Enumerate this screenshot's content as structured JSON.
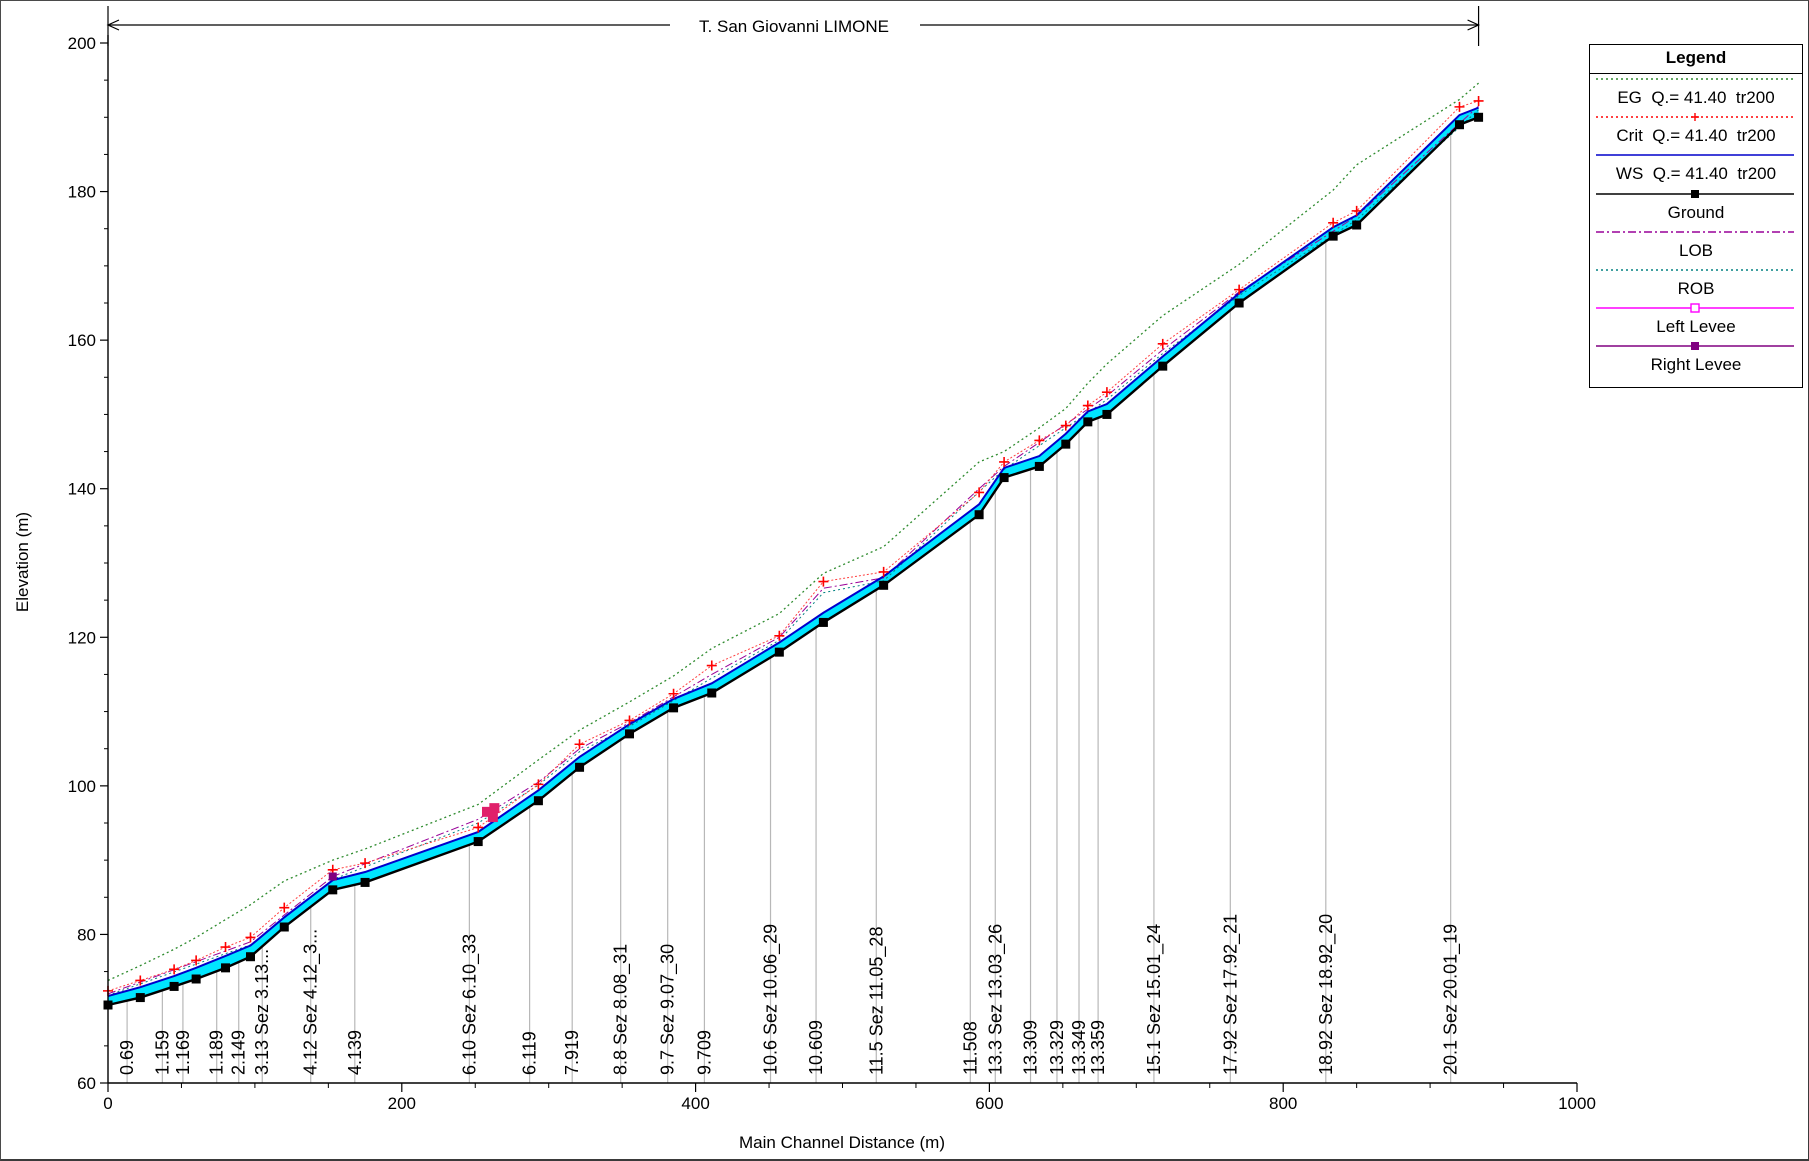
{
  "chart_data": {
    "type": "line",
    "title": "T. San Giovanni LIMONE",
    "xlabel": "Main Channel Distance (m)",
    "ylabel": "Elevation (m)",
    "xlim": [
      0,
      1000
    ],
    "ylim": [
      60,
      200
    ],
    "x_ticks": [
      "0",
      "200",
      "400",
      "600",
      "800",
      "1000"
    ],
    "y_ticks": [
      "60",
      "80",
      "100",
      "120",
      "140",
      "160",
      "180",
      "200"
    ],
    "legend_position": "top-right",
    "legend": {
      "title": "Legend",
      "items": [
        {
          "label": "EG  Q.= 41.40  tr200",
          "color": "#2e8b2e",
          "style": "dotted",
          "marker": ""
        },
        {
          "label": "Crit  Q.= 41.40  tr200",
          "color": "#ff0000",
          "style": "dotted",
          "marker": "plus"
        },
        {
          "label": "WS  Q.= 41.40  tr200",
          "color": "#0000cc",
          "style": "solid",
          "marker": ""
        },
        {
          "label": "Ground",
          "color": "#000000",
          "style": "solid",
          "marker": "square"
        },
        {
          "label": "LOB",
          "color": "#990099",
          "style": "dashdot",
          "marker": ""
        },
        {
          "label": "ROB",
          "color": "#008080",
          "style": "dotted",
          "marker": ""
        },
        {
          "label": "Left Levee",
          "color": "#ff00ff",
          "style": "solid",
          "marker": "hollow-square"
        },
        {
          "label": "Right Levee",
          "color": "#800080",
          "style": "solid",
          "marker": "square"
        }
      ]
    },
    "series": [
      {
        "name": "Ground",
        "x": [
          0,
          22,
          45,
          60,
          80,
          97,
          120,
          153,
          175,
          252,
          293,
          321,
          355,
          385,
          411,
          457,
          487,
          528,
          593,
          610,
          634,
          652,
          667,
          680,
          718,
          770,
          834,
          850,
          920,
          933
        ],
        "y": [
          70.5,
          71.5,
          73,
          74,
          75.5,
          77,
          81,
          86,
          87,
          92.5,
          98,
          102.5,
          107,
          110.5,
          112.5,
          118,
          122,
          127,
          136.5,
          141.5,
          143,
          146,
          149,
          150,
          156.5,
          165,
          174,
          175.5,
          189,
          190
        ]
      },
      {
        "name": "WS  Q.= 41.40  tr200",
        "x": [
          0,
          22,
          45,
          60,
          80,
          97,
          120,
          153,
          175,
          252,
          293,
          321,
          355,
          385,
          411,
          457,
          487,
          528,
          593,
          610,
          634,
          652,
          667,
          680,
          718,
          770,
          834,
          850,
          920,
          933
        ],
        "y": [
          71.7,
          72.9,
          74.4,
          75.5,
          77.1,
          78.5,
          82.3,
          87.3,
          88.4,
          93.8,
          99.4,
          103.9,
          108.3,
          111.7,
          113.8,
          119.3,
          123.3,
          128.2,
          137.9,
          142.8,
          144.4,
          147.4,
          150.4,
          151.4,
          157.8,
          166.3,
          175.2,
          176.8,
          190.3,
          191.3
        ]
      },
      {
        "name": "Crit  Q.= 41.40  tr200",
        "x": [
          0,
          22,
          45,
          60,
          80,
          97,
          120,
          153,
          175,
          252,
          293,
          321,
          355,
          385,
          411,
          457,
          487,
          528,
          593,
          610,
          634,
          652,
          667,
          680,
          718,
          770,
          834,
          850,
          920,
          933
        ],
        "y": [
          72.4,
          73.8,
          75.3,
          76.5,
          78.3,
          79.6,
          83.6,
          88.7,
          89.6,
          94.4,
          100.2,
          105.6,
          108.8,
          112.4,
          116.2,
          120.2,
          127.5,
          128.8,
          139.5,
          143.6,
          146.5,
          148.5,
          151.2,
          153,
          159.5,
          166.8,
          175.8,
          177.4,
          191.4,
          192.2
        ]
      },
      {
        "name": "EG  Q.= 41.40  tr200",
        "x": [
          0,
          22,
          45,
          60,
          80,
          97,
          120,
          153,
          175,
          252,
          293,
          321,
          355,
          385,
          411,
          457,
          487,
          528,
          593,
          610,
          634,
          652,
          667,
          680,
          718,
          770,
          834,
          850,
          920,
          933
        ],
        "y": [
          73.8,
          75.8,
          78,
          79.6,
          82,
          84,
          87.2,
          90,
          91.5,
          97.5,
          103.5,
          107.5,
          111.3,
          114.8,
          118.5,
          123.2,
          128.6,
          132.2,
          143.6,
          145,
          148.2,
          150.8,
          154.2,
          156.8,
          163.3,
          170.2,
          180.2,
          183.6,
          192.4,
          194.6
        ]
      },
      {
        "name": "LOB",
        "x": [
          0,
          97,
          153,
          252,
          293,
          321,
          355,
          411,
          457,
          487,
          528,
          593,
          610,
          667,
          680,
          718,
          770,
          850,
          933
        ],
        "y": [
          72,
          79,
          87.8,
          95.5,
          100.5,
          105,
          108.5,
          115,
          120,
          126.6,
          128,
          140,
          143,
          150.7,
          152.5,
          158.7,
          166.5,
          176.7,
          191.5
        ]
      },
      {
        "name": "ROB",
        "x": [
          0,
          97,
          153,
          252,
          293,
          321,
          355,
          411,
          457,
          487,
          528,
          593,
          610,
          667,
          680,
          718,
          770,
          850,
          933
        ],
        "y": [
          71.8,
          78.6,
          87.4,
          95,
          100.1,
          104.6,
          108,
          114.5,
          119.6,
          126,
          127.6,
          139.6,
          142.6,
          150.2,
          152,
          158.2,
          166,
          176.2,
          191
        ]
      }
    ],
    "sections": [
      {
        "x": 13,
        "label": "0.69"
      },
      {
        "x": 37,
        "label": "1.159"
      },
      {
        "x": 51,
        "label": "1.169"
      },
      {
        "x": 74,
        "label": "1.189"
      },
      {
        "x": 89,
        "label": "2.149"
      },
      {
        "x": 105,
        "label": "3.13 Sez 3.13..."
      },
      {
        "x": 138,
        "label": "4.12 Sez 4.12_3..."
      },
      {
        "x": 168,
        "label": "4.139"
      },
      {
        "x": 246,
        "label": "6.10 Sez 6.10_33"
      },
      {
        "x": 287,
        "label": "6.119"
      },
      {
        "x": 316,
        "label": "7.919"
      },
      {
        "x": 349,
        "label": "8.8 Sez 8.08_31"
      },
      {
        "x": 381,
        "label": "9.7 Sez 9.07_30"
      },
      {
        "x": 406,
        "label": "9.709"
      },
      {
        "x": 451,
        "label": "10.6 Sez 10.06_29"
      },
      {
        "x": 482,
        "label": "10.609"
      },
      {
        "x": 523,
        "label": "11.5 Sez 11.05_28"
      },
      {
        "x": 587,
        "label": "11.508"
      },
      {
        "x": 604,
        "label": "13.3 Sez 13.03_26"
      },
      {
        "x": 628,
        "label": "13.309"
      },
      {
        "x": 646,
        "label": "13.329"
      },
      {
        "x": 661,
        "label": "13.349"
      },
      {
        "x": 674,
        "label": "13.359"
      },
      {
        "x": 712,
        "label": "15.1 Sez 15.01_24"
      },
      {
        "x": 764,
        "label": "17.92 Sez 17.92_21"
      },
      {
        "x": 829,
        "label": "18.92 Sez 18.92_20"
      },
      {
        "x": 914,
        "label": "20.1 Sez 20.01_19"
      }
    ],
    "reach_start_x": 0,
    "reach_end_x": 933
  }
}
